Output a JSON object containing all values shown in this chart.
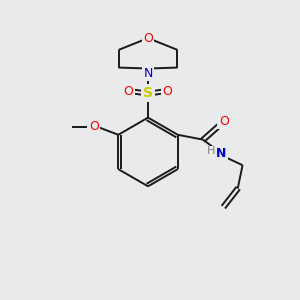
{
  "bg_color": "#e8eaeb",
  "atom_colors": {
    "O": "#ff0000",
    "N": "#0000cc",
    "S": "#cccc00",
    "H": "#808080"
  },
  "bond_color": "#1a1a1a",
  "figsize": [
    3.0,
    3.0
  ],
  "dpi": 100,
  "lw": 1.4,
  "fs": 9
}
